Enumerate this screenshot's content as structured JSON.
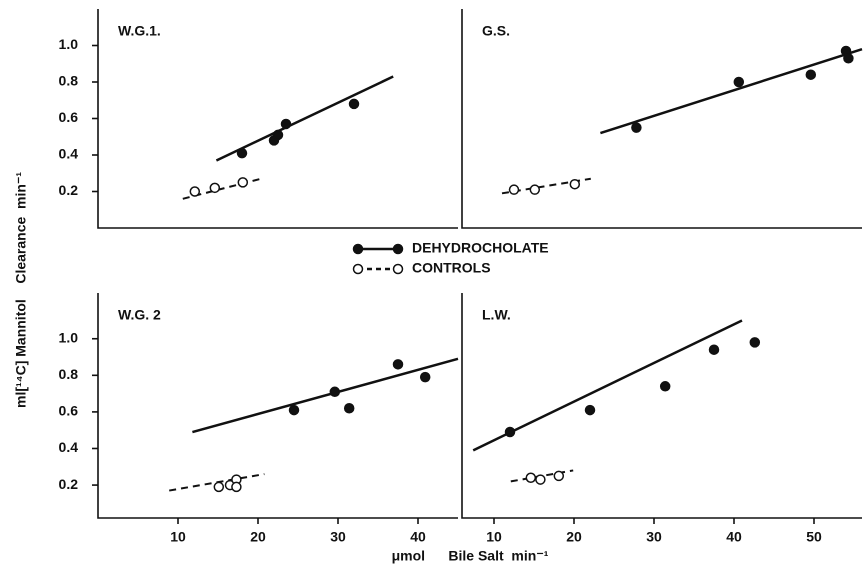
{
  "figure": {
    "y_label": "ml[¹⁴C] Mannitol    Clearance  min⁻¹",
    "x_label": "μmol      Bile Salt  min⁻¹",
    "legend": [
      {
        "name": "DEHYDROCHOLATE",
        "filled": true,
        "dashed": false
      },
      {
        "name": "CONTROLS",
        "filled": false,
        "dashed": true
      }
    ]
  },
  "chart_data": [
    {
      "type": "scatter",
      "label": "W.G.1.",
      "xlim": [
        0,
        45
      ],
      "ylim": [
        0,
        1.2
      ],
      "yticks": [
        0.2,
        0.4,
        0.6,
        0.8,
        {
          "value": 1,
          "label": "1.0"
        }
      ],
      "series": [
        {
          "color": "#111",
          "filled": true,
          "x": [
            18,
            22,
            22.5,
            23.5,
            32
          ],
          "values": [
            0.41,
            0.48,
            0.51,
            0.57,
            0.68
          ],
          "fit": {
            "x": [
              14.8,
              36.9
            ],
            "y": [
              0.37,
              0.83
            ]
          }
        },
        {
          "color": "#111",
          "filled": false,
          "x": [
            12.1,
            14.6,
            18.1
          ],
          "values": [
            0.2,
            0.22,
            0.25
          ],
          "fit": {
            "x": [
              10.6,
              20.4
            ],
            "y": [
              0.16,
              0.27
            ]
          }
        }
      ]
    },
    {
      "type": "scatter",
      "label": "G.S.",
      "xlim": [
        6,
        56
      ],
      "ylim": [
        0,
        1.2
      ],
      "series": [
        {
          "color": "#111",
          "filled": true,
          "x": [
            27.8,
            40.6,
            49.6,
            54,
            54.3
          ],
          "values": [
            0.55,
            0.8,
            0.84,
            0.97,
            0.93
          ],
          "fit": {
            "x": [
              23.3,
              56
            ],
            "y": [
              0.52,
              0.98
            ]
          }
        },
        {
          "color": "#111",
          "filled": false,
          "x": [
            12.5,
            15.1,
            20.1
          ],
          "values": [
            0.21,
            0.21,
            0.24
          ],
          "fit": {
            "x": [
              11,
              22.1
            ],
            "y": [
              0.19,
              0.27
            ]
          }
        }
      ]
    },
    {
      "type": "scatter",
      "label": "W.G. 2",
      "xlim": [
        0,
        45
      ],
      "ylim": [
        0.02,
        1.25
      ],
      "xticks": [
        10,
        20,
        30,
        40
      ],
      "yticks": [
        0.2,
        0.4,
        0.6,
        0.8,
        {
          "value": 1,
          "label": "1.0"
        }
      ],
      "series": [
        {
          "color": "#111",
          "filled": true,
          "x": [
            24.5,
            29.6,
            31.4,
            37.5,
            40.9
          ],
          "values": [
            0.61,
            0.71,
            0.62,
            0.86,
            0.79
          ],
          "fit": {
            "x": [
              11.8,
              45
            ],
            "y": [
              0.49,
              0.89
            ]
          }
        },
        {
          "color": "#111",
          "filled": false,
          "x": [
            15.1,
            16.5,
            17.3,
            17.3
          ],
          "values": [
            0.19,
            0.2,
            0.23,
            0.19
          ],
          "fit": {
            "x": [
              8.9,
              20.8
            ],
            "y": [
              0.17,
              0.26
            ]
          }
        }
      ]
    },
    {
      "type": "scatter",
      "label": "L.W.",
      "xlim": [
        6,
        56
      ],
      "ylim": [
        0.02,
        1.25
      ],
      "xticks": [
        10,
        20,
        30,
        40,
        50
      ],
      "series": [
        {
          "color": "#111",
          "filled": true,
          "x": [
            12,
            22,
            31.4,
            37.5,
            42.6
          ],
          "values": [
            0.49,
            0.61,
            0.74,
            0.94,
            0.98
          ],
          "fit": {
            "x": [
              7.4,
              41
            ],
            "y": [
              0.39,
              1.1
            ]
          }
        },
        {
          "color": "#111",
          "filled": false,
          "x": [
            14.6,
            15.8,
            18.1
          ],
          "values": [
            0.24,
            0.23,
            0.25
          ],
          "fit": {
            "x": [
              12.1,
              19.9
            ],
            "y": [
              0.22,
              0.28
            ]
          }
        }
      ]
    }
  ]
}
